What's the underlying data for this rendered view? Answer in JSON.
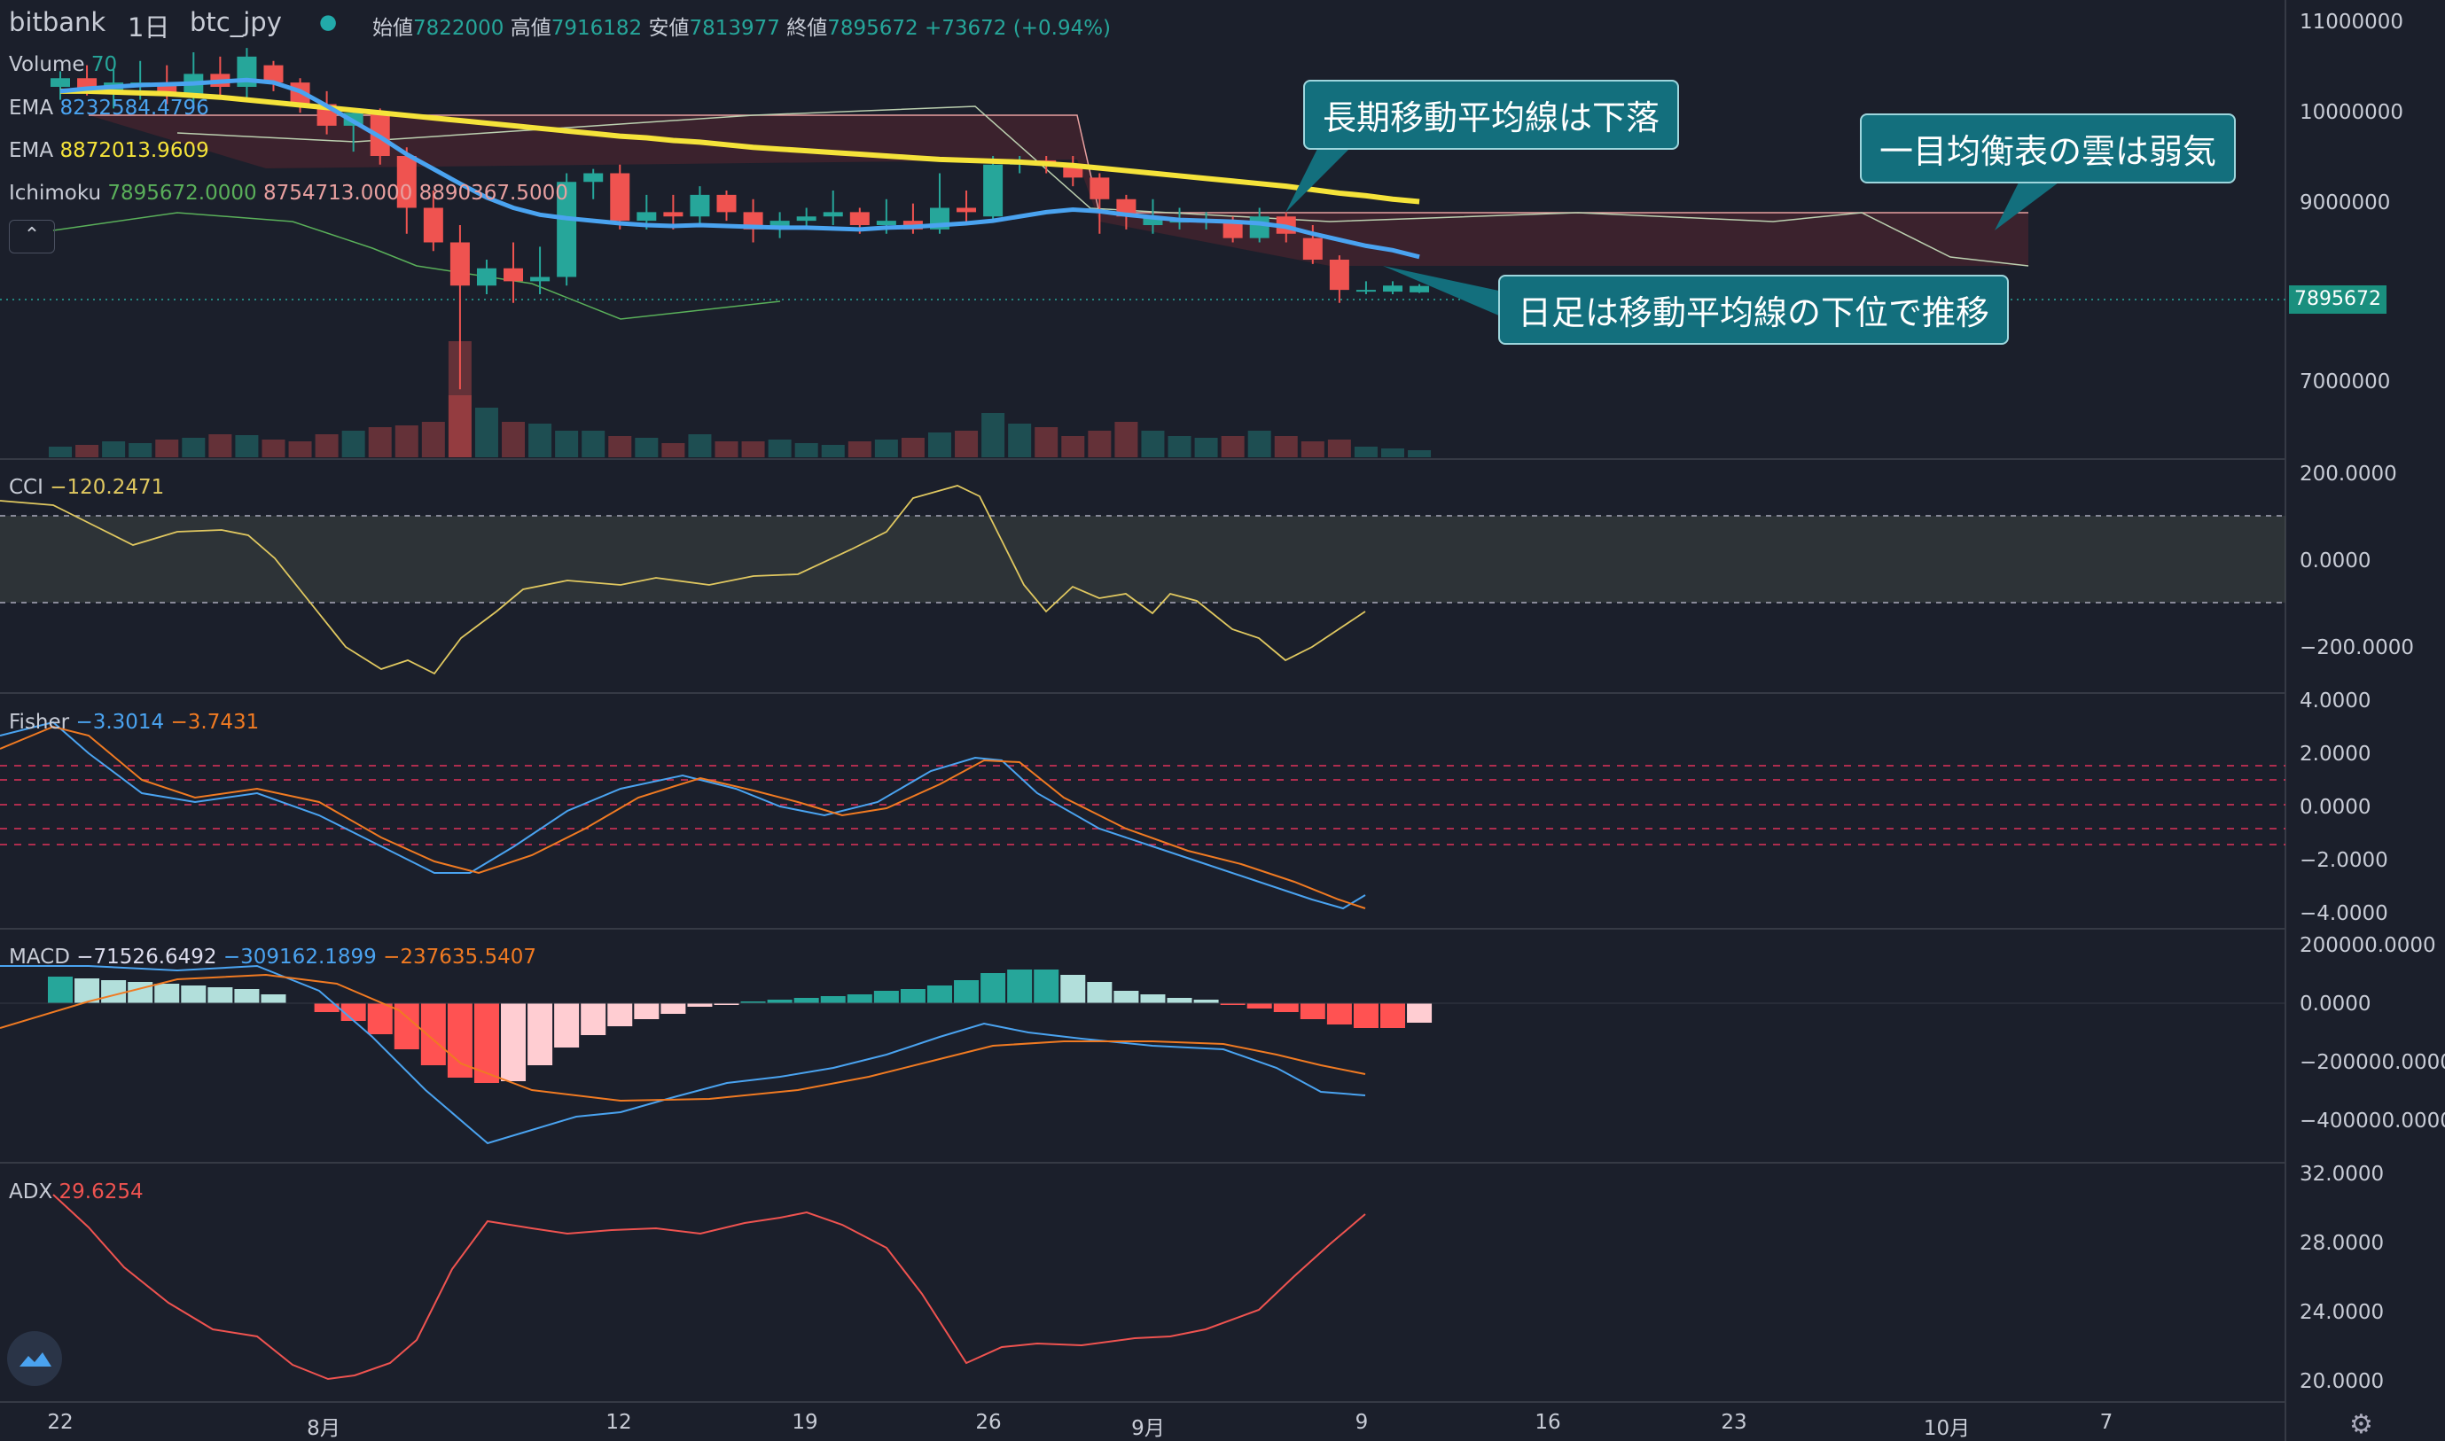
{
  "header": {
    "exchange": "bitbank",
    "interval": "1日",
    "symbol": "btc_jpy",
    "o_label": "始値",
    "o_val": "7822000",
    "h_label": "高値",
    "h_val": "7916182",
    "l_label": "安値",
    "l_val": "7813977",
    "c_label": "終値",
    "c_val": "7895672",
    "change": "+73672 (+0.94%)"
  },
  "legend": {
    "volume_label": "Volume",
    "volume_val": "70",
    "ema1_label": "EMA",
    "ema1_val": "8232584.4796",
    "ema2_label": "EMA",
    "ema2_val": "8872013.9609",
    "ichimoku_label": "Ichimoku",
    "ichi_v1": "7895672.0000",
    "ichi_v2": "8754713.0000",
    "ichi_v3": "8890367.5000",
    "collapse": "⌃"
  },
  "price_axis": [
    "11000000",
    "10000000",
    "9000000",
    "7000000"
  ],
  "price_tag": "7895672",
  "cci": {
    "label": "CCI",
    "val": "−120.2471",
    "axis": [
      "200.0000",
      "0.0000",
      "−200.0000"
    ]
  },
  "fisher": {
    "label": "Fisher",
    "v1": "−3.3014",
    "v2": "−3.7431",
    "axis": [
      "4.0000",
      "2.0000",
      "0.0000",
      "−2.0000",
      "−4.0000"
    ]
  },
  "macd": {
    "label": "MACD",
    "v1": "−71526.6492",
    "v2": "−309162.1899",
    "v3": "−237635.5407",
    "axis": [
      "200000.0000",
      "0.0000",
      "−200000.0000",
      "−400000.0000"
    ]
  },
  "adx": {
    "label": "ADX",
    "val": "29.6254",
    "axis": [
      "32.0000",
      "28.0000",
      "24.0000",
      "20.0000"
    ]
  },
  "time_axis": [
    "22",
    "8月",
    "12",
    "19",
    "26",
    "9月",
    "9",
    "16",
    "23",
    "10月",
    "7"
  ],
  "callouts": {
    "long_ma": "長期移動平均線は下落",
    "cloud": "一目均衡表の雲は弱気",
    "daily": "日足は移動平均線の下位で推移"
  },
  "colors": {
    "up": "#26a69a",
    "down": "#ef5350",
    "ema_short": "#4aa3f0",
    "ema_long": "#f5e33a",
    "callout": "#136f7d"
  },
  "chart_data": {
    "type": "candlestick",
    "start": "2020-07-20",
    "days": 52,
    "ohlc": [
      [
        10200000,
        10380000,
        10050000,
        10300000
      ],
      [
        10300000,
        10450000,
        10100000,
        10150000
      ],
      [
        10150000,
        10400000,
        9950000,
        10250000
      ],
      [
        10250000,
        10500000,
        10050000,
        10250000
      ],
      [
        10250000,
        10450000,
        10000000,
        10100000
      ],
      [
        10100000,
        10600000,
        10000000,
        10350000
      ],
      [
        10350000,
        10550000,
        10100000,
        10200000
      ],
      [
        10200000,
        10650000,
        10050000,
        10550000
      ],
      [
        10450000,
        10500000,
        10150000,
        10250000
      ],
      [
        10250000,
        10300000,
        9900000,
        10000000
      ],
      [
        10000000,
        10150000,
        9650000,
        9750000
      ],
      [
        9750000,
        9950000,
        9450000,
        9900000
      ],
      [
        9900000,
        9950000,
        9300000,
        9400000
      ],
      [
        9400000,
        9500000,
        8500000,
        8800000
      ],
      [
        8800000,
        9000000,
        8300000,
        8400000
      ],
      [
        8400000,
        8600000,
        6700000,
        7900000
      ],
      [
        7900000,
        8200000,
        7800000,
        8100000
      ],
      [
        8100000,
        8400000,
        7700000,
        7950000
      ],
      [
        7950000,
        8350000,
        7800000,
        8000000
      ],
      [
        8000000,
        9200000,
        7900000,
        9100000
      ],
      [
        9100000,
        9250000,
        8900000,
        9200000
      ],
      [
        9200000,
        9300000,
        8550000,
        8650000
      ],
      [
        8650000,
        8950000,
        8550000,
        8750000
      ],
      [
        8750000,
        8950000,
        8550000,
        8700000
      ],
      [
        8700000,
        9050000,
        8600000,
        8950000
      ],
      [
        8950000,
        9000000,
        8650000,
        8750000
      ],
      [
        8750000,
        8900000,
        8400000,
        8550000
      ],
      [
        8550000,
        8750000,
        8450000,
        8650000
      ],
      [
        8650000,
        8800000,
        8550000,
        8700000
      ],
      [
        8700000,
        9000000,
        8600000,
        8750000
      ],
      [
        8750000,
        8800000,
        8500000,
        8600000
      ],
      [
        8600000,
        8900000,
        8500000,
        8650000
      ],
      [
        8650000,
        8850000,
        8500000,
        8550000
      ],
      [
        8550000,
        9200000,
        8500000,
        8800000
      ],
      [
        8800000,
        9000000,
        8600000,
        8750000
      ],
      [
        8700000,
        9400000,
        8650000,
        9300000
      ],
      [
        9300000,
        9400000,
        9200000,
        9350000
      ],
      [
        9350000,
        9400000,
        9200000,
        9300000
      ],
      [
        9300000,
        9400000,
        9050000,
        9150000
      ],
      [
        9150000,
        9200000,
        8500000,
        8900000
      ],
      [
        8900000,
        8950000,
        8550000,
        8700000
      ],
      [
        8600000,
        8900000,
        8500000,
        8700000
      ],
      [
        8650000,
        8800000,
        8550000,
        8650000
      ],
      [
        8650000,
        8750000,
        8550000,
        8650000
      ],
      [
        8650000,
        8700000,
        8400000,
        8450000
      ],
      [
        8450000,
        8800000,
        8400000,
        8700000
      ],
      [
        8700000,
        8750000,
        8400000,
        8500000
      ],
      [
        8450000,
        8600000,
        8150000,
        8200000
      ],
      [
        8200000,
        8250000,
        7700000,
        7850000
      ],
      [
        7850000,
        7950000,
        7800000,
        7850000
      ],
      [
        7830000,
        7950000,
        7800000,
        7900000
      ],
      [
        7822000,
        7916182,
        7813977,
        7895672
      ]
    ],
    "ema_short": [
      10150000,
      10180000,
      10200000,
      10220000,
      10230000,
      10240000,
      10260000,
      10280000,
      10250000,
      10150000,
      9980000,
      9800000,
      9620000,
      9420000,
      9250000,
      9080000,
      8920000,
      8800000,
      8720000,
      8680000,
      8650000,
      8620000,
      8600000,
      8590000,
      8600000,
      8590000,
      8580000,
      8570000,
      8570000,
      8560000,
      8550000,
      8570000,
      8580000,
      8600000,
      8620000,
      8650000,
      8700000,
      8750000,
      8780000,
      8760000,
      8720000,
      8690000,
      8660000,
      8650000,
      8640000,
      8620000,
      8580000,
      8500000,
      8430000,
      8360000,
      8310000,
      8232584
    ],
    "ema_long": [
      10150000,
      10150000,
      10140000,
      10130000,
      10120000,
      10100000,
      10080000,
      10050000,
      10020000,
      9990000,
      9960000,
      9930000,
      9900000,
      9870000,
      9840000,
      9810000,
      9780000,
      9750000,
      9720000,
      9690000,
      9660000,
      9630000,
      9610000,
      9580000,
      9560000,
      9530000,
      9500000,
      9480000,
      9460000,
      9440000,
      9420000,
      9400000,
      9380000,
      9360000,
      9350000,
      9340000,
      9330000,
      9310000,
      9290000,
      9260000,
      9230000,
      9200000,
      9170000,
      9140000,
      9110000,
      9080000,
      9050000,
      9010000,
      8970000,
      8940000,
      8900000,
      8872013
    ]
  }
}
